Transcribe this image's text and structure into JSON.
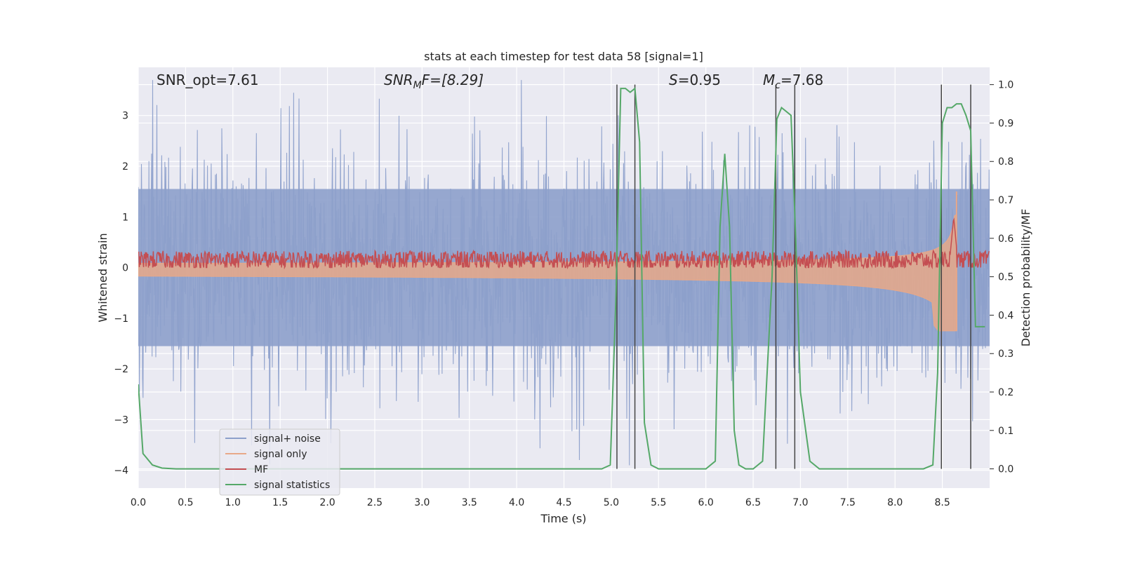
{
  "chart_data": {
    "type": "line",
    "title": "stats at each timestep for test data 58 [signal=1]",
    "xlabel": "Time (s)",
    "ylabel_left": "Whitened strain",
    "ylabel_right": "Detection probability/MF",
    "xlim": [
      0.0,
      9.0
    ],
    "ylim_left": [
      -4.35,
      3.95
    ],
    "ylim_right": [
      -0.05,
      1.045
    ],
    "x_ticks": [
      0.0,
      0.5,
      1.0,
      1.5,
      2.0,
      2.5,
      3.0,
      3.5,
      4.0,
      4.5,
      5.0,
      5.5,
      6.0,
      6.5,
      7.0,
      7.5,
      8.0,
      8.5
    ],
    "x_tick_labels": [
      "0.0",
      "0.5",
      "1.0",
      "1.5",
      "2.0",
      "2.5",
      "3.0",
      "3.5",
      "4.0",
      "4.5",
      "5.0",
      "5.5",
      "6.0",
      "6.5",
      "7.0",
      "7.5",
      "8.0",
      "8.5"
    ],
    "y_left_ticks": [
      3,
      2,
      1,
      0,
      -1,
      -2,
      -3,
      -4
    ],
    "y_left_tick_labels": [
      "3",
      "2",
      "1",
      "0",
      "−1",
      "−2",
      "−3",
      "−4"
    ],
    "y_right_ticks": [
      1.0,
      0.9,
      0.8,
      0.7,
      0.6,
      0.5,
      0.4,
      0.3,
      0.2,
      0.1,
      0.0
    ],
    "y_right_tick_labels": [
      "1.0",
      "0.9",
      "0.8",
      "0.7",
      "0.6",
      "0.5",
      "0.4",
      "0.3",
      "0.2",
      "0.1",
      "0.0"
    ],
    "grid": true,
    "legend_position": "lower-left",
    "annotations": {
      "snr_opt": "SNR_opt=7.61",
      "snr_mf_main": "SNR",
      "snr_mf_sub": "M",
      "snr_mf_rest": "F=[8.29]",
      "s_main": "S",
      "s_rest": "=0.95",
      "mc_main": "M",
      "mc_sub": "c",
      "mc_rest": "=7.68"
    },
    "series": [
      {
        "name": "signal+ noise",
        "color": "#8da0cb",
        "envelope_upper": 2.6,
        "envelope_lower": -2.4
      },
      {
        "name": "signal only",
        "color": "#e8a888"
      },
      {
        "name": "MF",
        "color": "#c44e52",
        "baseline": 0.15
      },
      {
        "name": "signal statistics",
        "color": "#55a868",
        "x": [
          0.0,
          0.05,
          0.15,
          0.25,
          0.4,
          1.0,
          2.0,
          3.0,
          4.0,
          4.9,
          4.99,
          5.05,
          5.1,
          5.15,
          5.2,
          5.25,
          5.3,
          5.35,
          5.42,
          5.5,
          5.6,
          6.0,
          6.1,
          6.15,
          6.2,
          6.25,
          6.3,
          6.35,
          6.42,
          6.5,
          6.6,
          6.7,
          6.75,
          6.8,
          6.9,
          6.95,
          7.0,
          7.1,
          7.2,
          7.3,
          8.0,
          8.3,
          8.4,
          8.45,
          8.5,
          8.55,
          8.6,
          8.65,
          8.7,
          8.75,
          8.8,
          8.85,
          8.9,
          8.95
        ],
        "y": [
          0.22,
          0.04,
          0.01,
          0.002,
          0.0,
          0.0,
          0.0,
          0.0,
          0.0,
          0.0,
          0.01,
          0.45,
          0.99,
          0.99,
          0.98,
          0.99,
          0.85,
          0.12,
          0.01,
          0.0,
          0.0,
          0.0,
          0.02,
          0.63,
          0.82,
          0.63,
          0.1,
          0.01,
          0.0,
          0.0,
          0.02,
          0.5,
          0.91,
          0.94,
          0.92,
          0.6,
          0.2,
          0.02,
          0.0,
          0.0,
          0.0,
          0.0,
          0.01,
          0.25,
          0.9,
          0.94,
          0.94,
          0.95,
          0.95,
          0.92,
          0.88,
          0.37,
          0.37,
          0.37
        ]
      }
    ],
    "vertical_lines_x": [
      5.06,
      5.25,
      6.74,
      6.94,
      8.49,
      8.8
    ]
  }
}
